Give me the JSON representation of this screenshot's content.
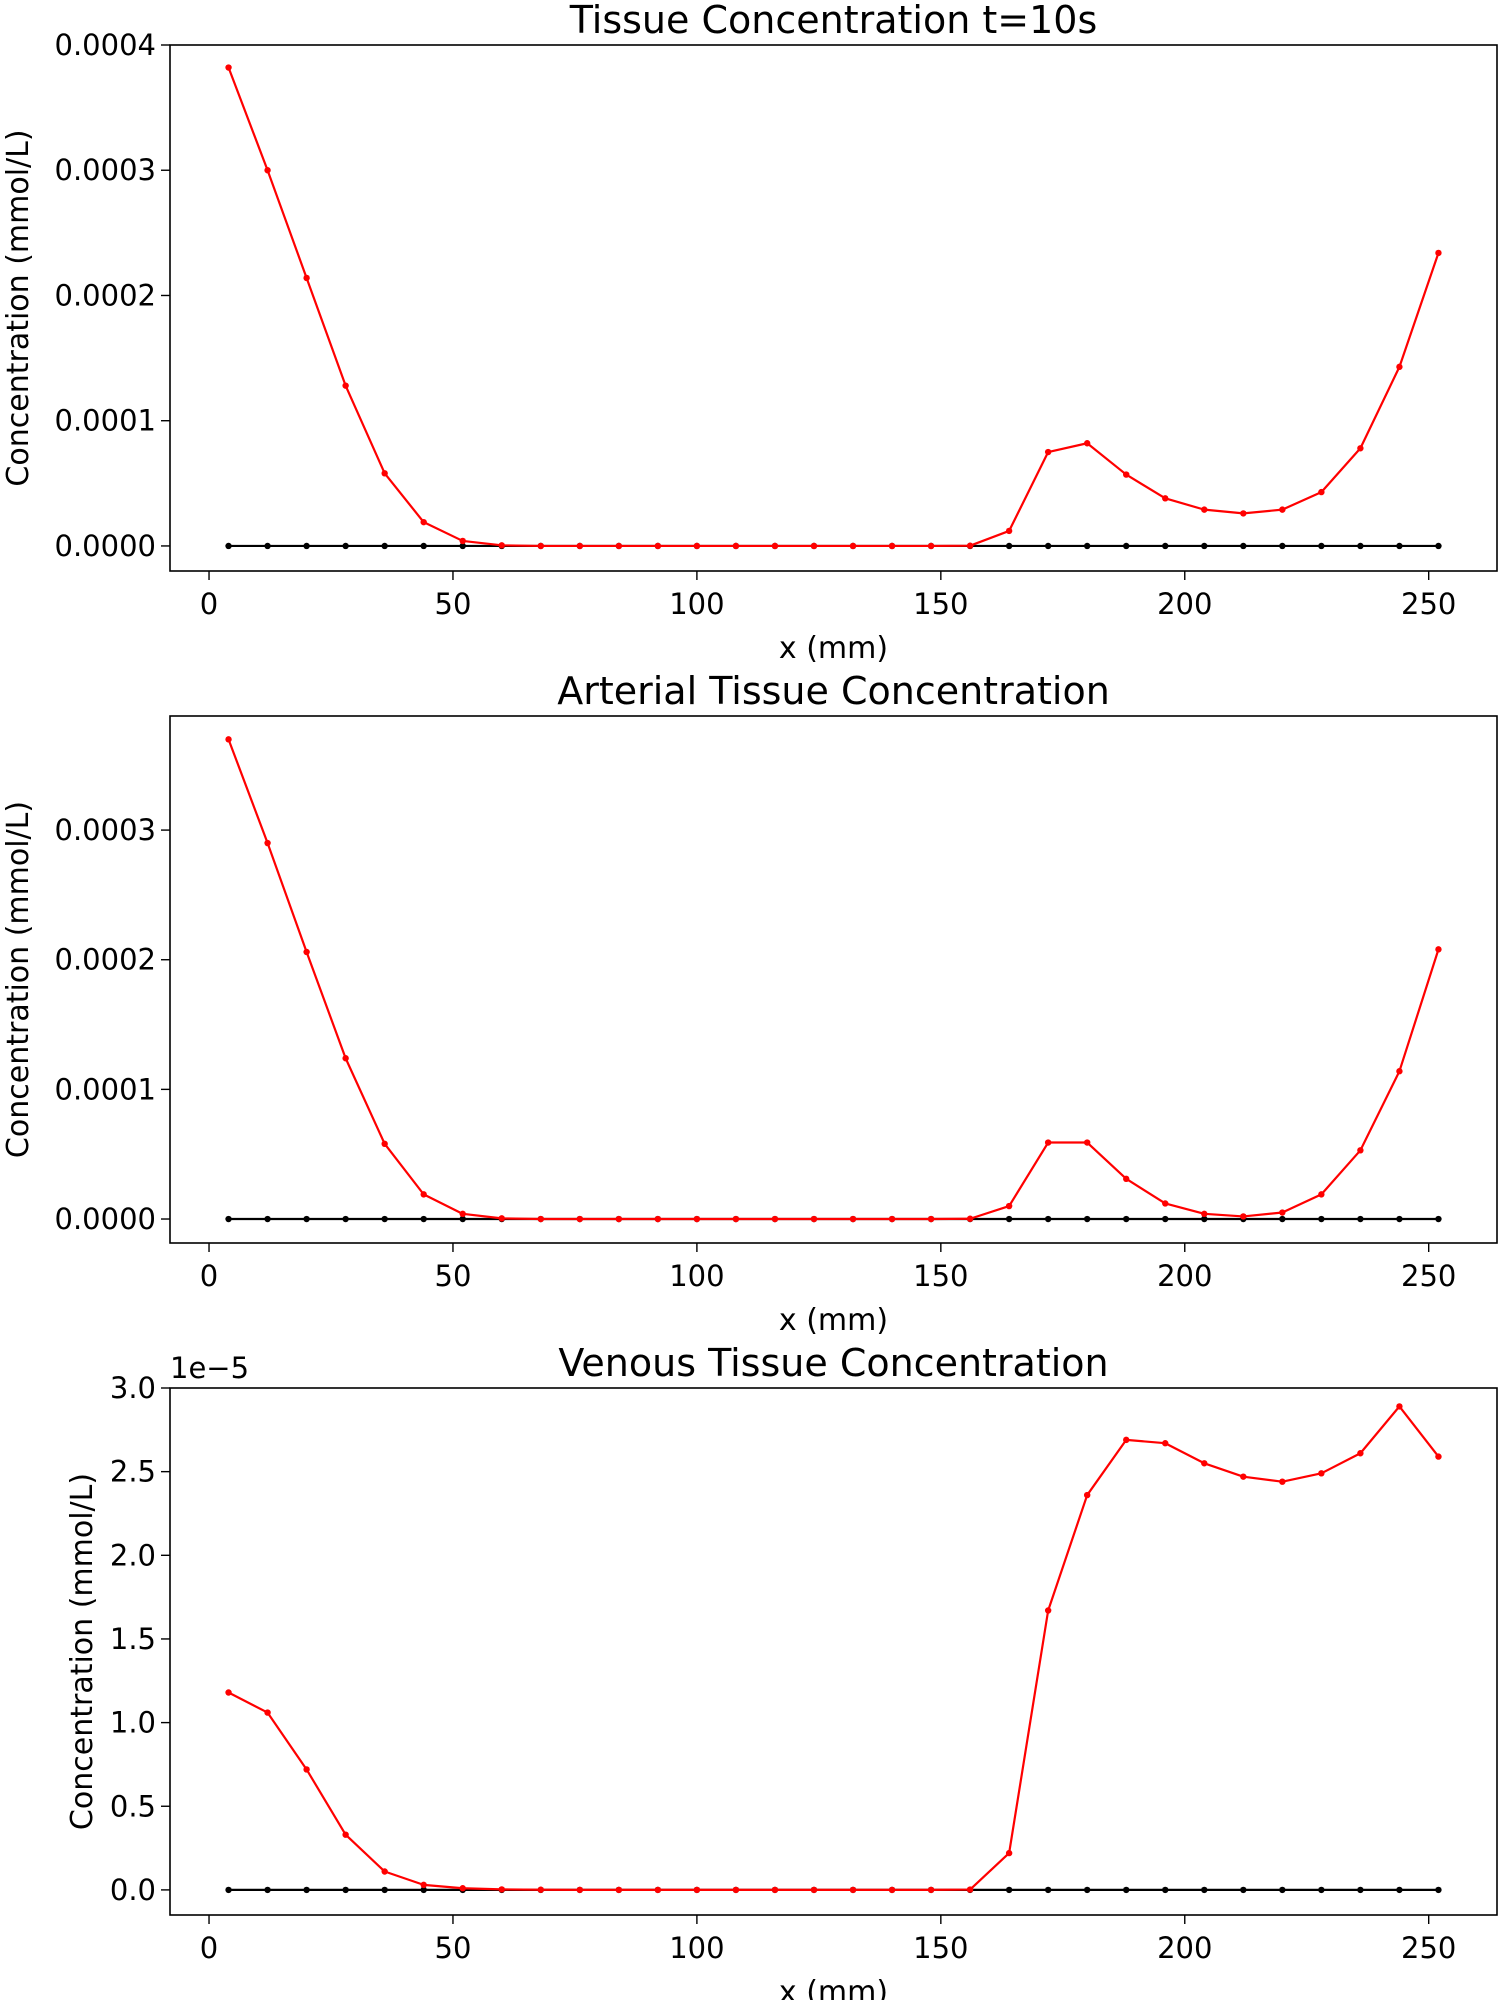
{
  "chart_data": [
    {
      "type": "line",
      "title": "Tissue Concentration t=10s",
      "xlabel": "x (mm)",
      "ylabel": "Concentration (mmol/L)",
      "offset_label": "",
      "xlim": [
        -8,
        264
      ],
      "ylim": [
        -2e-05,
        0.0004
      ],
      "xticks": [
        0,
        50,
        100,
        150,
        200,
        250
      ],
      "xtick_labels": [
        "0",
        "50",
        "100",
        "150",
        "200",
        "250"
      ],
      "yticks": [
        0,
        0.0001,
        0.0002,
        0.0003,
        0.0004
      ],
      "ytick_labels": [
        "0.0000",
        "0.0001",
        "0.0002",
        "0.0003",
        "0.0004"
      ],
      "x": [
        4,
        12,
        20,
        28,
        36,
        44,
        52,
        60,
        68,
        76,
        84,
        92,
        100,
        108,
        116,
        124,
        132,
        140,
        148,
        156,
        164,
        172,
        180,
        188,
        196,
        204,
        212,
        220,
        228,
        236,
        244,
        252
      ],
      "series": [
        {
          "color": "#ff0000",
          "values": [
            0.000382,
            0.0003,
            0.000214,
            0.000128,
            5.8e-05,
            1.9e-05,
            4e-06,
            5e-07,
            0,
            0,
            0,
            0,
            0,
            0,
            0,
            0,
            0,
            0,
            0,
            2e-07,
            1.2e-05,
            7.5e-05,
            8.2e-05,
            5.7e-05,
            3.8e-05,
            2.9e-05,
            2.6e-05,
            2.9e-05,
            4.3e-05,
            7.8e-05,
            0.000143,
            0.000234
          ]
        },
        {
          "color": "#000000",
          "values": [
            0,
            0,
            0,
            0,
            0,
            0,
            0,
            0,
            0,
            0,
            0,
            0,
            0,
            0,
            0,
            0,
            0,
            0,
            0,
            0,
            0,
            0,
            0,
            0,
            0,
            0,
            0,
            0,
            0,
            0,
            0,
            0
          ]
        }
      ]
    },
    {
      "type": "line",
      "title": "Arterial Tissue Concentration",
      "xlabel": "x (mm)",
      "ylabel": "Concentration (mmol/L)",
      "offset_label": "",
      "xlim": [
        -8,
        264
      ],
      "ylim": [
        -1.85e-05,
        0.000388
      ],
      "xticks": [
        0,
        50,
        100,
        150,
        200,
        250
      ],
      "xtick_labels": [
        "0",
        "50",
        "100",
        "150",
        "200",
        "250"
      ],
      "yticks": [
        0,
        0.0001,
        0.0002,
        0.0003
      ],
      "ytick_labels": [
        "0.0000",
        "0.0001",
        "0.0002",
        "0.0003"
      ],
      "x": [
        4,
        12,
        20,
        28,
        36,
        44,
        52,
        60,
        68,
        76,
        84,
        92,
        100,
        108,
        116,
        124,
        132,
        140,
        148,
        156,
        164,
        172,
        180,
        188,
        196,
        204,
        212,
        220,
        228,
        236,
        244,
        252
      ],
      "series": [
        {
          "color": "#ff0000",
          "values": [
            0.00037,
            0.00029,
            0.000206,
            0.000124,
            5.8e-05,
            1.9e-05,
            4e-06,
            5e-07,
            0,
            0,
            0,
            0,
            0,
            0,
            0,
            0,
            0,
            0,
            0,
            2e-07,
            1e-05,
            5.9e-05,
            5.9e-05,
            3.1e-05,
            1.2e-05,
            4e-06,
            2e-06,
            5e-06,
            1.9e-05,
            5.3e-05,
            0.000114,
            0.000208
          ]
        },
        {
          "color": "#000000",
          "values": [
            0,
            0,
            0,
            0,
            0,
            0,
            0,
            0,
            0,
            0,
            0,
            0,
            0,
            0,
            0,
            0,
            0,
            0,
            0,
            0,
            0,
            0,
            0,
            0,
            0,
            0,
            0,
            0,
            0,
            0,
            0,
            0
          ]
        }
      ]
    },
    {
      "type": "line",
      "title": "Venous Tissue Concentration",
      "xlabel": "x (mm)",
      "ylabel": "Concentration (mmol/L)",
      "offset_label": "1e−5",
      "xlim": [
        -8,
        264
      ],
      "ylim": [
        -0.15,
        3.0
      ],
      "xticks": [
        0,
        50,
        100,
        150,
        200,
        250
      ],
      "xtick_labels": [
        "0",
        "50",
        "100",
        "150",
        "200",
        "250"
      ],
      "yticks": [
        0,
        0.5,
        1.0,
        1.5,
        2.0,
        2.5,
        3.0
      ],
      "ytick_labels": [
        "0.0",
        "0.5",
        "1.0",
        "1.5",
        "2.0",
        "2.5",
        "3.0"
      ],
      "x": [
        4,
        12,
        20,
        28,
        36,
        44,
        52,
        60,
        68,
        76,
        84,
        92,
        100,
        108,
        116,
        124,
        132,
        140,
        148,
        156,
        164,
        172,
        180,
        188,
        196,
        204,
        212,
        220,
        228,
        236,
        244,
        252
      ],
      "series": [
        {
          "color": "#ff0000",
          "values": [
            1.18,
            1.06,
            0.72,
            0.33,
            0.11,
            0.03,
            0.01,
            0.003,
            0.001,
            0,
            0,
            0,
            0,
            0,
            0,
            0,
            0,
            0,
            0,
            0.002,
            0.22,
            1.67,
            2.36,
            2.69,
            2.67,
            2.55,
            2.47,
            2.44,
            2.49,
            2.61,
            2.89,
            2.59
          ]
        },
        {
          "color": "#000000",
          "values": [
            0,
            0,
            0,
            0,
            0,
            0,
            0,
            0,
            0,
            0,
            0,
            0,
            0,
            0,
            0,
            0,
            0,
            0,
            0,
            0,
            0,
            0,
            0,
            0,
            0,
            0,
            0,
            0,
            0,
            0,
            0,
            0
          ]
        }
      ]
    }
  ]
}
